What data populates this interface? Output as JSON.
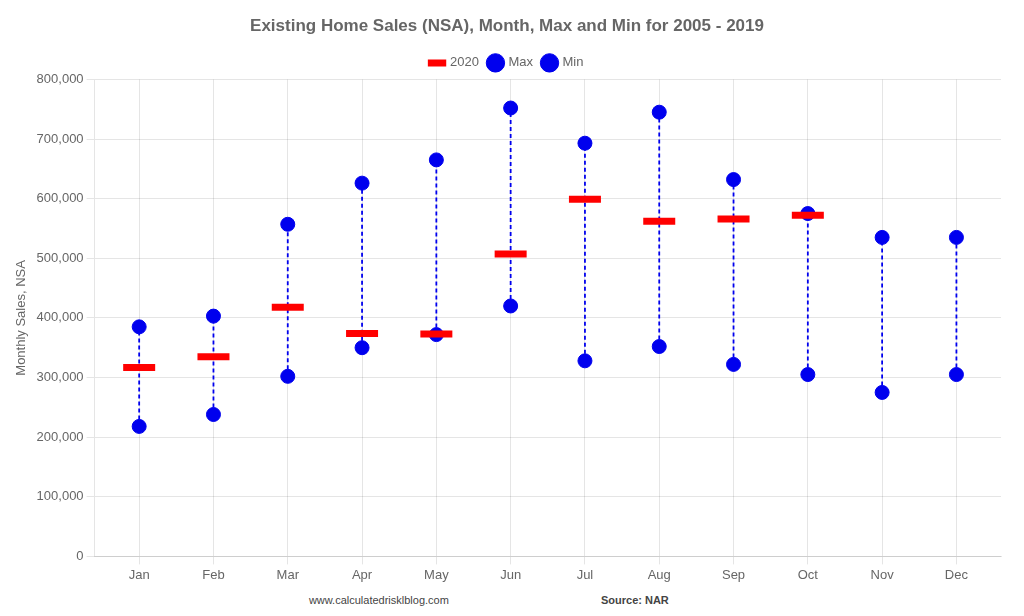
{
  "chart_data": {
    "type": "scatter",
    "title": "Existing Home Sales (NSA), Month, Max and Min for 2005 - 2019",
    "ylabel": "Monthly Sales, NSA",
    "categories": [
      "Jan",
      "Feb",
      "Mar",
      "Apr",
      "May",
      "Jun",
      "Jul",
      "Aug",
      "Sep",
      "Oct",
      "Nov",
      "Dec"
    ],
    "series": [
      {
        "name": "Max",
        "color": "#0000EE",
        "marker": "o",
        "values": [
          385000,
          403000,
          557000,
          626000,
          665000,
          752000,
          693000,
          745000,
          632000,
          575000,
          535000,
          535000
        ]
      },
      {
        "name": "Min",
        "color": "#0000EE",
        "marker": "o",
        "values": [
          218000,
          238000,
          302000,
          350000,
          372000,
          420000,
          328000,
          352000,
          322000,
          305000,
          275000,
          305000
        ]
      },
      {
        "name": "2020",
        "color": "#FF0000",
        "marker": "_",
        "values": [
          317000,
          335000,
          418000,
          374000,
          373000,
          507000,
          599000,
          562000,
          566000,
          572000,
          null,
          null
        ]
      }
    ],
    "color": "#0000EE",
    "line_style": "dashed",
    "ylim": [
      0,
      800000
    ],
    "yticks": [
      0,
      {
        "value": 100000,
        "label": "100,000"
      },
      {
        "value": 200000,
        "label": "200,000"
      },
      {
        "value": 300000,
        "label": "300,000"
      },
      {
        "value": 400000,
        "label": "400,000"
      },
      {
        "value": 500000,
        "label": "500,000"
      },
      {
        "value": 600000,
        "label": "600,000"
      },
      {
        "value": 700000,
        "label": "700,000"
      },
      {
        "value": 800000,
        "label": "800,000"
      }
    ],
    "grid": true,
    "legend": "top",
    "annotations": [
      "www.calculatedrisklblog.com",
      "Source: NAR"
    ]
  }
}
